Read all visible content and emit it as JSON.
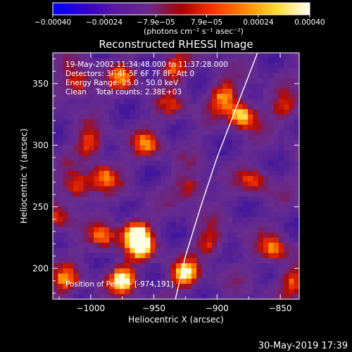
{
  "chart_data": {
    "type": "heatmap",
    "title": "Reconstructed RHESSI Image",
    "xlabel": "Heliocentric X (arcsec)",
    "ylabel": "Heliocentric Y (arcsec)",
    "xlim": [
      -1030,
      -835
    ],
    "ylim": [
      175,
      375
    ],
    "x_ticks": [
      -1000,
      -950,
      -900,
      -850
    ],
    "x_tick_labels": [
      "−1000",
      "−950",
      "−900",
      "−850"
    ],
    "y_ticks": [
      200,
      250,
      300,
      350
    ],
    "y_tick_labels": [
      "200",
      "250",
      "300",
      "350"
    ],
    "colorbar": {
      "range": [
        -0.0004,
        0.0004
      ],
      "ticks": [
        -0.0004,
        -0.00024,
        -7.9e-05,
        7.9e-05,
        0.00024,
        0.0004
      ],
      "tick_labels": [
        "−0.00040",
        "−0.00024",
        "−7.9e−05",
        "7.9e−05",
        "0.00024",
        "0.00040"
      ],
      "units_label": "(photons cm⁻² s⁻¹ asec⁻²)",
      "colors": [
        "#0000ff",
        "#3300cc",
        "#5a1aa0",
        "#6a2a8c",
        "#aa0000",
        "#ff3300",
        "#ff8800",
        "#ffdd33",
        "#ffffff"
      ]
    },
    "annotations": {
      "time_range": "19-May-2002 11:34:48.000 to 11:37:28.000",
      "detectors": "Detectors: 3F 4F 5F 6F 7F 8F, Att 0",
      "energy": "Energy Range: 25.0 - 50.0 keV",
      "clean": "Clean    Total counts: 2.38E+03",
      "peak": "Position of Peak = [-974,191]"
    },
    "peak": [
      -974,
      191
    ],
    "limb_curve": [
      [
        -933,
        175
      ],
      [
        -925,
        210
      ],
      [
        -913,
        250
      ],
      [
        -900,
        290
      ],
      [
        -885,
        330
      ],
      [
        -868,
        375
      ]
    ],
    "hotspots": [
      {
        "x": -1010,
        "y": 350,
        "v": 0.7
      },
      {
        "x": -975,
        "y": 355,
        "v": 0.55
      },
      {
        "x": -935,
        "y": 362,
        "v": 0.6
      },
      {
        "x": -880,
        "y": 325,
        "v": 1.0
      },
      {
        "x": -895,
        "y": 340,
        "v": 0.7
      },
      {
        "x": -1000,
        "y": 300,
        "v": 0.65
      },
      {
        "x": -955,
        "y": 300,
        "v": 0.6
      },
      {
        "x": -1010,
        "y": 265,
        "v": 0.7
      },
      {
        "x": -990,
        "y": 275,
        "v": 0.6
      },
      {
        "x": -965,
        "y": 230,
        "v": 0.85
      },
      {
        "x": -960,
        "y": 218,
        "v": 0.95
      },
      {
        "x": -990,
        "y": 225,
        "v": 0.65
      },
      {
        "x": -1020,
        "y": 190,
        "v": 0.6
      },
      {
        "x": -974,
        "y": 191,
        "v": 1.0
      },
      {
        "x": -925,
        "y": 195,
        "v": 0.9
      },
      {
        "x": -905,
        "y": 220,
        "v": 0.55
      },
      {
        "x": -870,
        "y": 270,
        "v": 0.55
      },
      {
        "x": -855,
        "y": 215,
        "v": 0.7
      },
      {
        "x": -845,
        "y": 330,
        "v": 0.5
      },
      {
        "x": -920,
        "y": 265,
        "v": 0.6
      },
      {
        "x": -935,
        "y": 330,
        "v": 0.45
      },
      {
        "x": -1025,
        "y": 240,
        "v": 0.5
      },
      {
        "x": -840,
        "y": 190,
        "v": 0.55
      }
    ],
    "footer": "30-May-2019 17:39"
  }
}
